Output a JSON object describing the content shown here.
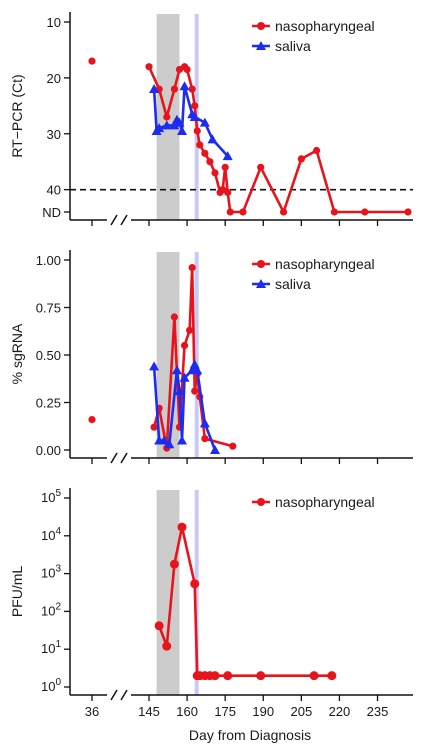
{
  "chart_data": [
    {
      "id": "ct",
      "type": "line",
      "ylabel": "RT−PCR (Ct)",
      "y_reversed": true,
      "ylim": [
        10,
        44
      ],
      "yticks": [
        10,
        20,
        30,
        40
      ],
      "extra_ytick_labels": [
        {
          "y": 44,
          "label": "ND"
        }
      ],
      "reference_line": {
        "y": 40,
        "style": "dashed"
      },
      "shaded_bands": [
        {
          "x0": 148,
          "x1": 157,
          "color": "#cccccc"
        },
        {
          "x0": 163,
          "x1": 164,
          "color": "#c9c9f5"
        }
      ],
      "legend": [
        {
          "label": "nasopharyngeal",
          "series": "nasopharyngeal"
        },
        {
          "label": "saliva",
          "series": "saliva"
        }
      ],
      "series": [
        {
          "name": "nasopharyngeal",
          "color": "#e8141c",
          "marker": "circle",
          "x": [
            36
          ],
          "y": [
            17
          ],
          "connected": false
        },
        {
          "name": "nasopharyngeal",
          "color": "#e8141c",
          "marker": "circle",
          "x": [
            145,
            149,
            152,
            155,
            157,
            159,
            160,
            162,
            163,
            164,
            165,
            167,
            169,
            171,
            173,
            174,
            175,
            176,
            177,
            182,
            189,
            198,
            205,
            211,
            218,
            230,
            247
          ],
          "y": [
            18,
            22,
            27,
            22,
            18.5,
            18,
            18.5,
            22,
            25,
            29.5,
            32,
            33.5,
            35,
            37,
            40.5,
            40,
            36,
            40.5,
            44,
            44,
            36,
            44,
            34.5,
            33,
            44,
            44,
            44
          ],
          "connected": true
        },
        {
          "name": "saliva",
          "color": "#1c2cf0",
          "marker": "triangle",
          "x": [
            147,
            148,
            149,
            152,
            155,
            156,
            157,
            158,
            159,
            162,
            163,
            167,
            170,
            176
          ],
          "y": [
            22,
            29.5,
            29,
            28.5,
            28.5,
            27.5,
            28,
            29.5,
            21.5,
            26.5,
            27,
            28,
            31,
            34
          ],
          "connected": true
        }
      ]
    },
    {
      "id": "sgrna",
      "type": "line",
      "ylabel": "% sgRNA",
      "ylim": [
        0,
        1
      ],
      "yticks": [
        0.0,
        0.25,
        0.5,
        0.75,
        1.0
      ],
      "ytick_labels": [
        "0.00",
        "0.25",
        "0.50",
        "0.75",
        "1.00"
      ],
      "shaded_bands": [
        {
          "x0": 148,
          "x1": 157,
          "color": "#cccccc"
        },
        {
          "x0": 163,
          "x1": 164,
          "color": "#c9c9f5"
        }
      ],
      "legend": [
        {
          "label": "nasopharyngeal",
          "series": "nasopharyngeal"
        },
        {
          "label": "saliva",
          "series": "saliva"
        }
      ],
      "series": [
        {
          "name": "nasopharyngeal",
          "color": "#e8141c",
          "marker": "circle",
          "x": [
            36
          ],
          "y": [
            0.16
          ],
          "connected": false
        },
        {
          "name": "nasopharyngeal",
          "color": "#e8141c",
          "marker": "circle",
          "x": [
            147,
            149,
            152,
            155,
            157,
            159,
            161,
            162,
            163,
            164,
            165,
            167,
            178
          ],
          "y": [
            0.12,
            0.22,
            0.01,
            0.7,
            0.12,
            0.55,
            0.63,
            0.96,
            0.31,
            0.4,
            0.28,
            0.06,
            0.02
          ],
          "connected": true
        },
        {
          "name": "saliva",
          "color": "#1c2cf0",
          "marker": "triangle",
          "x": [
            147,
            149,
            151,
            153,
            156,
            157,
            158,
            159,
            162,
            163,
            164,
            167,
            171
          ],
          "y": [
            0.44,
            0.05,
            0.05,
            0.03,
            0.42,
            0.31,
            0.05,
            0.38,
            0.42,
            0.45,
            0.42,
            0.14,
            0.0
          ],
          "connected": true
        }
      ]
    },
    {
      "id": "pfu",
      "type": "line",
      "ylabel": "PFU/mL",
      "y_scale": "log10",
      "ylim": [
        0,
        5
      ],
      "yticks": [
        0,
        1,
        2,
        3,
        4,
        5
      ],
      "ytick_labels": [
        {
          "base": "10",
          "exp": "0"
        },
        {
          "base": "10",
          "exp": "1"
        },
        {
          "base": "10",
          "exp": "2"
        },
        {
          "base": "10",
          "exp": "3"
        },
        {
          "base": "10",
          "exp": "4"
        },
        {
          "base": "10",
          "exp": "5"
        }
      ],
      "xlabel": "Day from Diagnosis",
      "xticks": [
        36,
        145,
        160,
        175,
        190,
        205,
        220,
        235
      ],
      "shaded_bands": [
        {
          "x0": 148,
          "x1": 157,
          "color": "#cccccc"
        },
        {
          "x0": 163,
          "x1": 164,
          "color": "#c9c9f5"
        }
      ],
      "legend": [
        {
          "label": "nasopharyngeal",
          "series": "nasopharyngeal"
        }
      ],
      "series": [
        {
          "name": "nasopharyngeal",
          "color": "#e8141c",
          "marker": "circle",
          "x": [
            149,
            152,
            155,
            158,
            163,
            164,
            165,
            167,
            169,
            171,
            176,
            189,
            210,
            217
          ],
          "y": [
            1.62,
            1.08,
            3.25,
            4.23,
            2.73,
            0.3,
            0.3,
            0.3,
            0.3,
            0.3,
            0.3,
            0.3,
            0.3,
            0.3
          ],
          "connected": true
        }
      ]
    }
  ]
}
